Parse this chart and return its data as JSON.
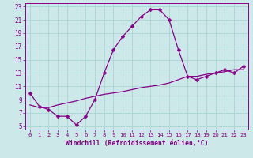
{
  "xlabel": "Windchill (Refroidissement éolien,°C)",
  "bg_color": "#cce8e8",
  "line_color": "#880088",
  "grid_color": "#aad4d4",
  "line1_x": [
    0,
    1,
    2,
    3,
    4,
    5,
    6,
    7,
    8,
    9,
    10,
    11,
    12,
    13,
    14,
    15,
    16,
    17,
    18,
    19,
    20,
    21,
    22,
    23
  ],
  "line1_y": [
    10.0,
    8.0,
    7.5,
    6.5,
    6.5,
    5.2,
    6.5,
    9.0,
    13.0,
    16.5,
    18.5,
    20.0,
    21.5,
    22.5,
    22.5,
    21.0,
    16.5,
    12.5,
    12.0,
    12.5,
    13.0,
    13.5,
    13.0,
    14.0
  ],
  "line2_x": [
    0,
    1,
    2,
    3,
    4,
    5,
    6,
    7,
    8,
    9,
    10,
    11,
    12,
    13,
    14,
    15,
    16,
    17,
    18,
    19,
    20,
    21,
    22,
    23
  ],
  "line2_y": [
    8.2,
    7.8,
    7.8,
    8.2,
    8.5,
    8.8,
    9.2,
    9.5,
    9.8,
    10.0,
    10.2,
    10.5,
    10.8,
    11.0,
    11.2,
    11.5,
    12.0,
    12.5,
    12.5,
    12.8,
    13.0,
    13.2,
    13.5,
    13.5
  ],
  "xlim": [
    -0.5,
    23.5
  ],
  "ylim": [
    4.5,
    23.5
  ],
  "yticks": [
    5,
    7,
    9,
    11,
    13,
    15,
    17,
    19,
    21,
    23
  ],
  "xticks": [
    0,
    1,
    2,
    3,
    4,
    5,
    6,
    7,
    8,
    9,
    10,
    11,
    12,
    13,
    14,
    15,
    16,
    17,
    18,
    19,
    20,
    21,
    22,
    23
  ]
}
